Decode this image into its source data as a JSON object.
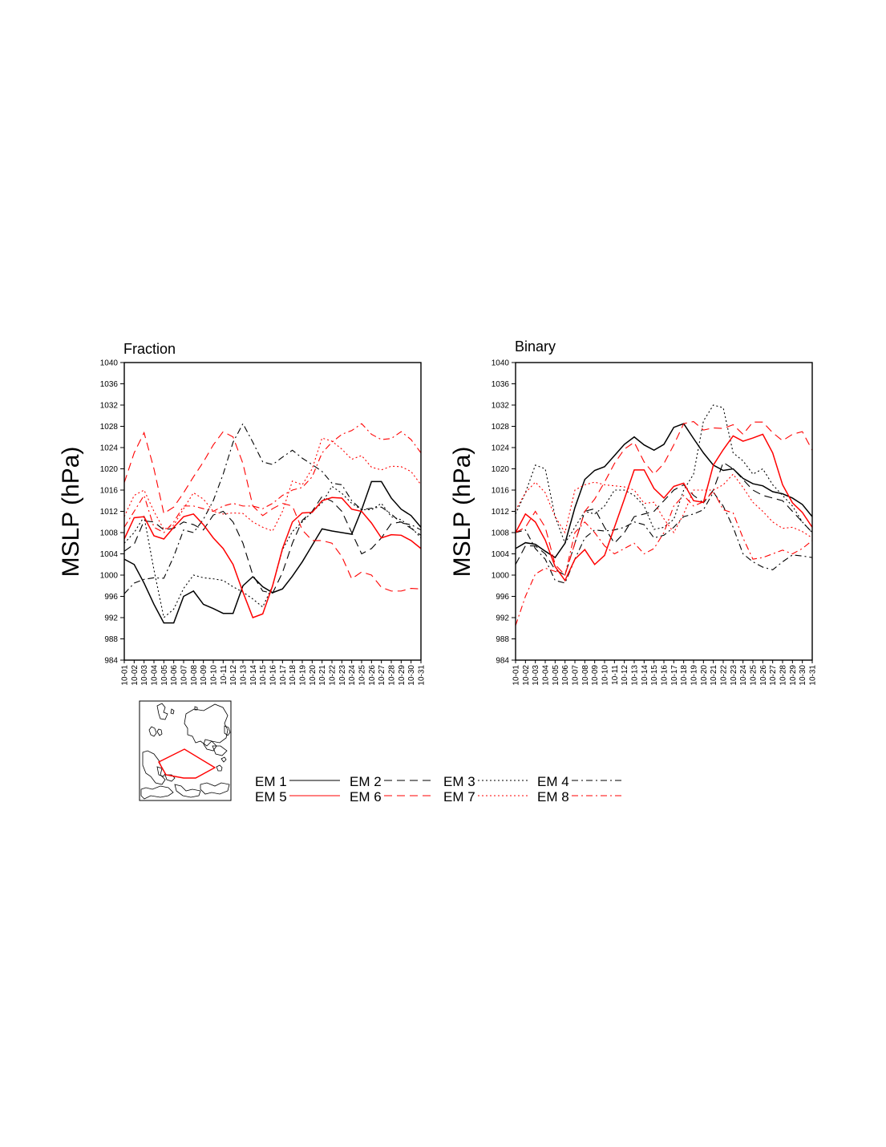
{
  "chart_data": [
    {
      "type": "line",
      "title": "Fraction",
      "ylabel": "MSLP (hPa)",
      "ylim": [
        984,
        1040
      ],
      "yticks": [
        984,
        988,
        992,
        996,
        1000,
        1004,
        1008,
        1012,
        1016,
        1020,
        1024,
        1028,
        1032,
        1036,
        1040
      ],
      "categories": [
        "10-01",
        "10-02",
        "10-03",
        "10-04",
        "10-05",
        "10-06",
        "10-07",
        "10-08",
        "10-09",
        "10-10",
        "10-11",
        "10-12",
        "10-13",
        "10-14",
        "10-15",
        "10-16",
        "10-17",
        "10-18",
        "10-19",
        "10-20",
        "10-21",
        "10-22",
        "10-23",
        "10-24",
        "10-25",
        "10-26",
        "10-27",
        "10-28",
        "10-29",
        "10-30",
        "10-31"
      ],
      "series": [
        {
          "name": "EM 1",
          "values": [
            1003,
            1002,
            998.5,
            994.5,
            991,
            991,
            996,
            997,
            994.5,
            993.7,
            992.8,
            992.8,
            998,
            999.7,
            997.8,
            996.7,
            997.4,
            999.8,
            1002.5,
            1005.6,
            1008.7,
            1008.3,
            1008,
            1007.7,
            1012.3,
            1017.6,
            1017.6,
            1014.5,
            1012.4,
            1011.2,
            1009
          ]
        },
        {
          "name": "EM 2",
          "values": [
            1004.5,
            1005.8,
            1010.2,
            1010,
            1008.5,
            1008.8,
            1010,
            1009.5,
            1008.5,
            1011.3,
            1012,
            1010,
            1006,
            1000,
            997,
            996.6,
            1000.5,
            1006,
            1010.3,
            1012,
            1014.8,
            1013.9,
            1012,
            1008,
            1004,
            1005,
            1007,
            1009.7,
            1010,
            1008.8,
            1007.5
          ]
        },
        {
          "name": "EM 3",
          "values": [
            1006,
            1008,
            1011,
            1001,
            992,
            993.6,
            997.5,
            1000,
            999.5,
            999.3,
            999,
            997.8,
            996.8,
            995.5,
            994,
            998,
            1004.8,
            1008.2,
            1010,
            1011.9,
            1013.6,
            1016.7,
            1015.4,
            1013.5,
            1012.3,
            1012.3,
            1013.5,
            1011,
            1010.4,
            1009,
            1007
          ]
        },
        {
          "name": "EM 4",
          "values": [
            996.5,
            998.5,
            999.2,
            999.5,
            999.4,
            1003.5,
            1008.5,
            1008,
            1010.5,
            1014,
            1019,
            1025,
            1028.5,
            1025,
            1021.3,
            1020.8,
            1022.2,
            1023.5,
            1022,
            1020.8,
            1019.5,
            1017.3,
            1017,
            1014,
            1012.3,
            1012.6,
            1012.8,
            1011.5,
            1009.8,
            1009.5,
            1008.5
          ]
        },
        {
          "name": "EM 5",
          "values": [
            1006.8,
            1010.8,
            1011,
            1007.4,
            1006.8,
            1009,
            1011,
            1011.5,
            1009.5,
            1007,
            1005,
            1002,
            996.8,
            992,
            992.7,
            998,
            1005,
            1010,
            1011.7,
            1011.8,
            1014,
            1014.6,
            1014.5,
            1012.4,
            1012,
            1009.8,
            1007,
            1007.6,
            1007.5,
            1006.5,
            1005
          ]
        },
        {
          "name": "EM 6",
          "values": [
            1017.4,
            1023,
            1026.8,
            1020,
            1011.6,
            1012.8,
            1015.5,
            1018.5,
            1021.3,
            1024.5,
            1027,
            1026,
            1021,
            1013,
            1011.2,
            1012.5,
            1013.5,
            1013,
            1008.5,
            1006.5,
            1006.5,
            1006,
            1003.5,
            999.3,
            1000.6,
            1000,
            997.7,
            997,
            997,
            997.5,
            997.4
          ]
        },
        {
          "name": "EM 7",
          "values": [
            1011,
            1015,
            1016,
            1012,
            1008.6,
            1009.4,
            1012.5,
            1015.5,
            1014.3,
            1012,
            1011.5,
            1011.7,
            1011.6,
            1010,
            1009,
            1008.3,
            1012,
            1017.7,
            1017,
            1020,
            1025.8,
            1025.2,
            1023.7,
            1021.8,
            1022.5,
            1020.3,
            1019.8,
            1020.5,
            1020.4,
            1019.5,
            1017
          ]
        },
        {
          "name": "EM 8",
          "values": [
            1009,
            1012,
            1015,
            1009,
            1008,
            1010,
            1013,
            1013,
            1012.5,
            1012,
            1013,
            1013.5,
            1013,
            1013,
            1012.5,
            1013.5,
            1015,
            1016,
            1016.5,
            1018.5,
            1023,
            1025,
            1026.5,
            1027.2,
            1028.5,
            1026.5,
            1025.5,
            1025.7,
            1027,
            1025.5,
            1023
          ]
        }
      ]
    },
    {
      "type": "line",
      "title": "Binary",
      "ylabel": "MSLP (hPa)",
      "ylim": [
        984,
        1040
      ],
      "yticks": [
        984,
        988,
        992,
        996,
        1000,
        1004,
        1008,
        1012,
        1016,
        1020,
        1024,
        1028,
        1032,
        1036,
        1040
      ],
      "categories": [
        "10-01",
        "10-02",
        "10-03",
        "10-04",
        "10-05",
        "10-06",
        "10-07",
        "10-08",
        "10-09",
        "10-10",
        "10-11",
        "10-12",
        "10-13",
        "10-14",
        "10-15",
        "10-16",
        "10-17",
        "10-18",
        "10-19",
        "10-20",
        "10-21",
        "10-22",
        "10-23",
        "10-24",
        "10-25",
        "10-26",
        "10-27",
        "10-28",
        "10-29",
        "10-30",
        "10-31"
      ],
      "series": [
        {
          "name": "EM 1",
          "values": [
            1005,
            1006.1,
            1005.8,
            1004.5,
            1003.3,
            1006,
            1012.7,
            1018,
            1019.7,
            1020.4,
            1022.5,
            1024.6,
            1026,
            1024.5,
            1023.5,
            1024.6,
            1027.8,
            1028.5,
            1025.7,
            1023,
            1020.7,
            1019.7,
            1020,
            1018.2,
            1017.2,
            1016.8,
            1015.7,
            1015.3,
            1014.5,
            1013.3,
            1011
          ]
        },
        {
          "name": "EM 2",
          "values": [
            1002,
            1005.5,
            1005.5,
            1004,
            1001,
            1000,
            1006,
            1012,
            1012.5,
            1009,
            1006,
            1008,
            1011,
            1011.5,
            1012,
            1014,
            1016,
            1017,
            1015,
            1013.6,
            1016,
            1021.2,
            1020,
            1018,
            1016,
            1015,
            1014.5,
            1014,
            1012,
            1010,
            1008
          ]
        },
        {
          "name": "EM 3",
          "values": [
            1011.5,
            1015.5,
            1020.7,
            1020,
            1011,
            1006,
            1009,
            1012,
            1011.5,
            1013,
            1016,
            1016,
            1015,
            1013,
            1008.6,
            1009,
            1010.5,
            1016,
            1019,
            1029,
            1032,
            1031.5,
            1023,
            1021.5,
            1019,
            1020,
            1017,
            1015,
            1013,
            1010,
            1008
          ]
        },
        {
          "name": "EM 4",
          "values": [
            1008,
            1008.5,
            1005,
            1003,
            999,
            998.5,
            1003,
            1007,
            1008.5,
            1008.3,
            1008.5,
            1009,
            1010,
            1009.5,
            1007,
            1007.5,
            1009,
            1011,
            1011.5,
            1012.3,
            1015.6,
            1013,
            1009,
            1004,
            1002.5,
            1001.5,
            1001,
            1002.5,
            1003.8,
            1003.6,
            1003.3
          ]
        },
        {
          "name": "EM 5",
          "values": [
            1008,
            1011.5,
            1010,
            1006.6,
            1001.6,
            999,
            1003,
            1004.8,
            1002,
            1003.7,
            1009,
            1014.3,
            1019.8,
            1019.8,
            1016.3,
            1014.5,
            1016.7,
            1017.3,
            1014,
            1013.7,
            1020.7,
            1023.6,
            1026.2,
            1025.2,
            1025.8,
            1026.5,
            1023,
            1017,
            1013.6,
            1011.8,
            1009
          ]
        },
        {
          "name": "EM 6",
          "values": [
            1008,
            1009,
            1012,
            1009,
            1002,
            1000,
            1006,
            1012,
            1014.3,
            1017.5,
            1021,
            1023.7,
            1025,
            1021.3,
            1019,
            1021,
            1024.5,
            1028.5,
            1028.9,
            1027.3,
            1027.7,
            1027.6,
            1028.3,
            1026.5,
            1028.8,
            1028.8,
            1026.8,
            1025.3,
            1026.5,
            1027,
            1023.5
          ]
        },
        {
          "name": "EM 7",
          "values": [
            1012.2,
            1015.5,
            1017.5,
            1015.5,
            1011,
            1008,
            1016,
            1017,
            1017.5,
            1017,
            1016.8,
            1016.6,
            1016,
            1013.5,
            1013.7,
            1010.6,
            1008,
            1011.5,
            1016,
            1016,
            1016,
            1017,
            1019,
            1016.5,
            1013.7,
            1012,
            1010,
            1008.8,
            1009,
            1008.2,
            1007
          ]
        },
        {
          "name": "EM 8",
          "values": [
            990.5,
            996,
            1000.2,
            1001.3,
            1000.7,
            1000,
            1008,
            1010,
            1008,
            1005.5,
            1004,
            1005,
            1006,
            1004,
            1005,
            1008,
            1013,
            1015,
            1013,
            1013.8,
            1015.8,
            1012.3,
            1011.7,
            1007,
            1003,
            1003.3,
            1004,
            1004.7,
            1004,
            1005,
            1006.5
          ]
        }
      ]
    }
  ],
  "legend": {
    "items": [
      {
        "label": "EM 1",
        "color": "#000000",
        "style": "solid"
      },
      {
        "label": "EM 2",
        "color": "#000000",
        "style": "longdash"
      },
      {
        "label": "EM 3",
        "color": "#000000",
        "style": "dot"
      },
      {
        "label": "EM 4",
        "color": "#000000",
        "style": "dashdot"
      },
      {
        "label": "EM 5",
        "color": "#ff0000",
        "style": "solid"
      },
      {
        "label": "EM 6",
        "color": "#ff0000",
        "style": "longdash"
      },
      {
        "label": "EM 7",
        "color": "#ff0000",
        "style": "dot"
      },
      {
        "label": "EM 8",
        "color": "#ff0000",
        "style": "dashdot"
      }
    ]
  },
  "inset_map": {
    "region_color": "#ff0000"
  }
}
